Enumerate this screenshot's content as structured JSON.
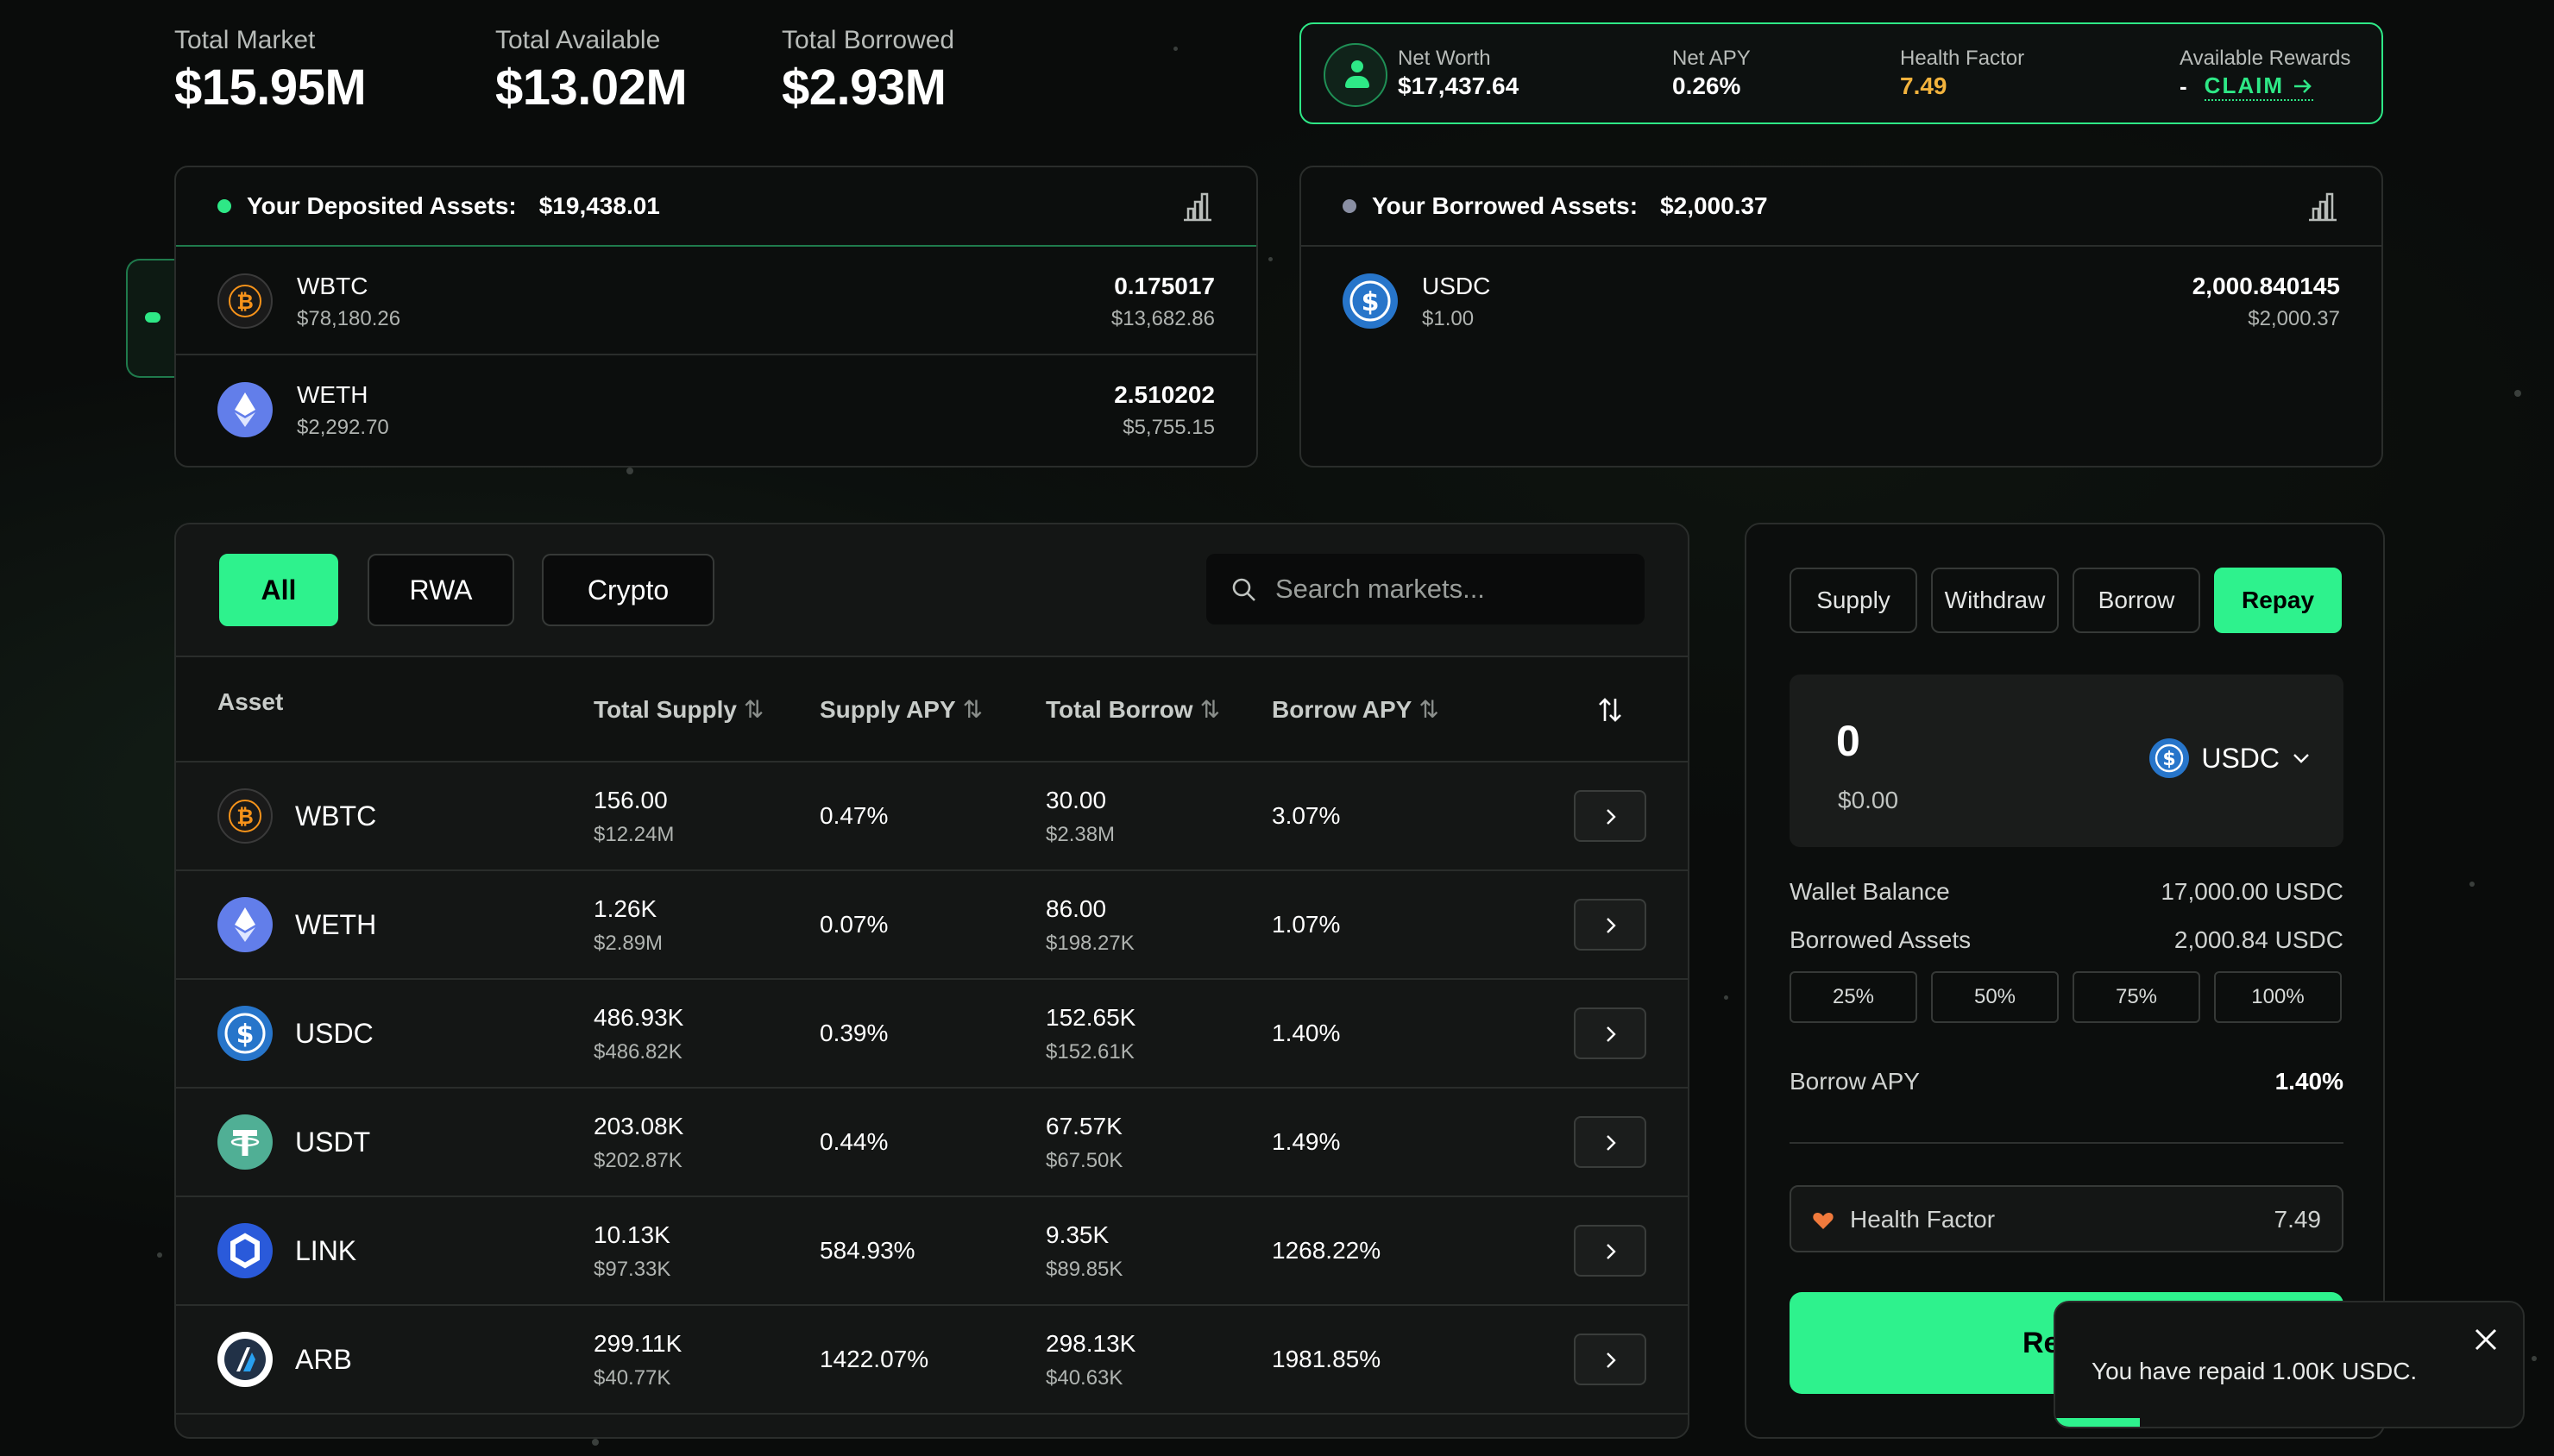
{
  "stats": [
    {
      "label": "Total Market",
      "value": "$15.95M"
    },
    {
      "label": "Total Available",
      "value": "$13.02M"
    },
    {
      "label": "Total Borrowed",
      "value": "$2.93M"
    }
  ],
  "summary": {
    "net_worth_label": "Net Worth",
    "net_worth": "$17,437.64",
    "net_apy_label": "Net APY",
    "net_apy": "0.26%",
    "health_factor_label": "Health Factor",
    "health_factor": "7.49",
    "rewards_label": "Available Rewards",
    "rewards_value": "-",
    "claim_label": "CLAIM"
  },
  "deposited": {
    "title": "Your Deposited Assets:",
    "total": "$19,438.01",
    "assets": [
      {
        "name": "WBTC",
        "price": "$78,180.26",
        "amount": "0.175017",
        "value": "$13,682.86"
      },
      {
        "name": "WETH",
        "price": "$2,292.70",
        "amount": "2.510202",
        "value": "$5,755.15"
      }
    ]
  },
  "borrowed": {
    "title": "Your Borrowed Assets:",
    "total": "$2,000.37",
    "assets": [
      {
        "name": "USDC",
        "price": "$1.00",
        "amount": "2,000.840145",
        "value": "$2,000.37"
      }
    ]
  },
  "market": {
    "filters": [
      "All",
      "RWA",
      "Crypto"
    ],
    "active_filter": "All",
    "search_placeholder": "Search markets...",
    "columns": {
      "asset": "Asset",
      "total_supply": "Total Supply",
      "supply_apy": "Supply APY",
      "total_borrow": "Total Borrow",
      "borrow_apy": "Borrow APY"
    },
    "rows": [
      {
        "name": "WBTC",
        "total_supply": "156.00",
        "total_supply_usd": "$12.24M",
        "supply_apy": "0.47%",
        "total_borrow": "30.00",
        "total_borrow_usd": "$2.38M",
        "borrow_apy": "3.07%"
      },
      {
        "name": "WETH",
        "total_supply": "1.26K",
        "total_supply_usd": "$2.89M",
        "supply_apy": "0.07%",
        "total_borrow": "86.00",
        "total_borrow_usd": "$198.27K",
        "borrow_apy": "1.07%"
      },
      {
        "name": "USDC",
        "total_supply": "486.93K",
        "total_supply_usd": "$486.82K",
        "supply_apy": "0.39%",
        "total_borrow": "152.65K",
        "total_borrow_usd": "$152.61K",
        "borrow_apy": "1.40%"
      },
      {
        "name": "USDT",
        "total_supply": "203.08K",
        "total_supply_usd": "$202.87K",
        "supply_apy": "0.44%",
        "total_borrow": "67.57K",
        "total_borrow_usd": "$67.50K",
        "borrow_apy": "1.49%"
      },
      {
        "name": "LINK",
        "total_supply": "10.13K",
        "total_supply_usd": "$97.33K",
        "supply_apy": "584.93%",
        "total_borrow": "9.35K",
        "total_borrow_usd": "$89.85K",
        "borrow_apy": "1268.22%"
      },
      {
        "name": "ARB",
        "total_supply": "299.11K",
        "total_supply_usd": "$40.77K",
        "supply_apy": "1422.07%",
        "total_borrow": "298.13K",
        "total_borrow_usd": "$40.63K",
        "borrow_apy": "1981.85%"
      }
    ]
  },
  "action_panel": {
    "tabs": [
      "Supply",
      "Withdraw",
      "Borrow",
      "Repay"
    ],
    "active_tab": "Repay",
    "amount": "0",
    "amount_usd": "$0.00",
    "token": "USDC",
    "wallet_balance_label": "Wallet Balance",
    "wallet_balance": "17,000.00 USDC",
    "borrowed_assets_label": "Borrowed Assets",
    "borrowed_assets": "2,000.84 USDC",
    "percent_buttons": [
      "25%",
      "50%",
      "75%",
      "100%"
    ],
    "borrow_apy_label": "Borrow APY",
    "borrow_apy": "1.40%",
    "health_factor_label": "Health Factor",
    "health_factor": "7.49",
    "submit_label": "Repay"
  },
  "toast": {
    "message": "You have repaid 1.00K USDC.",
    "progress": 0.18
  },
  "colors": {
    "accent": "#2ef28d",
    "health_factor": "#f2b33d",
    "btc": "#f7931a",
    "eth": "#627eea",
    "usdc": "#2775ca",
    "usdt": "#50af95",
    "link": "#2a5ada",
    "arb": "#213147"
  }
}
